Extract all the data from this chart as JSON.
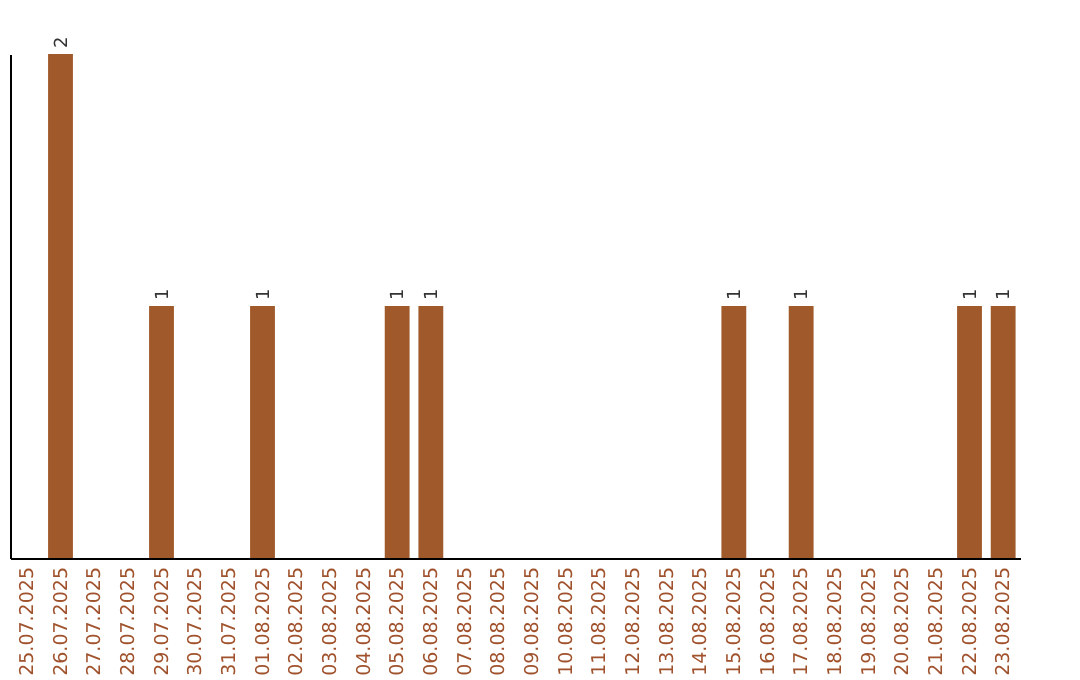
{
  "chart_data": {
    "type": "bar",
    "categories": [
      "25.07.2025",
      "26.07.2025",
      "27.07.2025",
      "28.07.2025",
      "29.07.2025",
      "30.07.2025",
      "31.07.2025",
      "01.08.2025",
      "02.08.2025",
      "03.08.2025",
      "04.08.2025",
      "05.08.2025",
      "06.08.2025",
      "07.08.2025",
      "08.08.2025",
      "09.08.2025",
      "10.08.2025",
      "11.08.2025",
      "12.08.2025",
      "13.08.2025",
      "14.08.2025",
      "15.08.2025",
      "16.08.2025",
      "17.08.2025",
      "18.08.2025",
      "19.08.2025",
      "20.08.2025",
      "21.08.2025",
      "22.08.2025",
      "23.08.2025"
    ],
    "values": [
      0,
      2,
      0,
      0,
      1,
      0,
      0,
      1,
      0,
      0,
      0,
      1,
      1,
      0,
      0,
      0,
      0,
      0,
      0,
      0,
      0,
      1,
      0,
      1,
      0,
      0,
      0,
      0,
      1,
      1
    ],
    "value_labels": [
      null,
      "2",
      null,
      null,
      "1",
      null,
      null,
      "1",
      null,
      null,
      null,
      "1",
      "1",
      null,
      null,
      null,
      null,
      null,
      null,
      null,
      null,
      "1",
      null,
      "1",
      null,
      null,
      null,
      null,
      "1",
      "1"
    ],
    "color": "#a0592a",
    "tick_labels": "x",
    "grid": false
  }
}
